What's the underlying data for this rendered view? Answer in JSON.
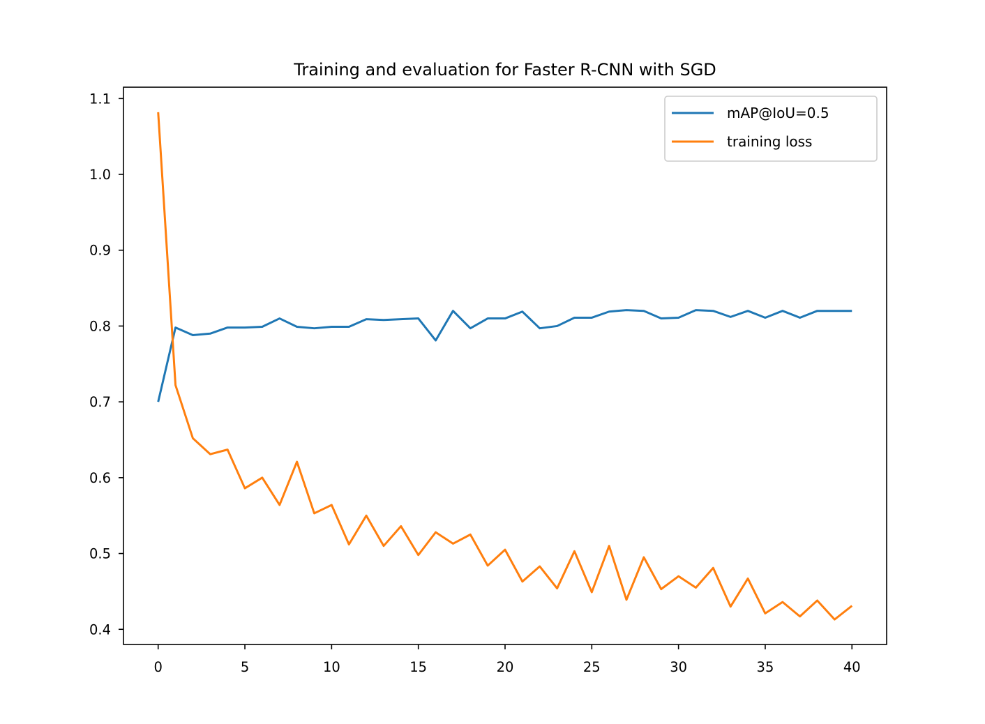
{
  "chart_data": {
    "type": "line",
    "title": "Training and evaluation for Faster R-CNN with SGD",
    "xlabel": "",
    "ylabel": "",
    "xlim": [
      -2,
      42
    ],
    "ylim": [
      0.38,
      1.115
    ],
    "x_ticks": [
      0,
      5,
      10,
      15,
      20,
      25,
      30,
      35,
      40
    ],
    "y_ticks": [
      0.4,
      0.5,
      0.6,
      0.7,
      0.8,
      0.9,
      1.0,
      1.1
    ],
    "x_tick_labels": [
      "0",
      "5",
      "10",
      "15",
      "20",
      "25",
      "30",
      "35",
      "40"
    ],
    "y_tick_labels": [
      "0.4",
      "0.5",
      "0.6",
      "0.7",
      "0.8",
      "0.9",
      "1.0",
      "1.1"
    ],
    "grid": false,
    "legend_position": "upper-right",
    "x": [
      0,
      1,
      2,
      3,
      4,
      5,
      6,
      7,
      8,
      9,
      10,
      11,
      12,
      13,
      14,
      15,
      16,
      17,
      18,
      19,
      20,
      21,
      22,
      23,
      24,
      25,
      26,
      27,
      28,
      29,
      30,
      31,
      32,
      33,
      34,
      35,
      36,
      37,
      38,
      39,
      40
    ],
    "series": [
      {
        "name": "mAP@IoU=0.5",
        "color": "#1f77b4",
        "values": [
          0.7,
          0.798,
          0.788,
          0.79,
          0.798,
          0.798,
          0.799,
          0.81,
          0.799,
          0.797,
          0.799,
          0.799,
          0.809,
          0.808,
          0.809,
          0.81,
          0.781,
          0.82,
          0.797,
          0.81,
          0.81,
          0.819,
          0.797,
          0.8,
          0.811,
          0.811,
          0.819,
          0.821,
          0.82,
          0.81,
          0.811,
          0.821,
          0.82,
          0.812,
          0.82,
          0.811,
          0.82,
          0.811,
          0.82,
          0.82,
          0.82
        ]
      },
      {
        "name": "training loss",
        "color": "#ff7f0e",
        "values": [
          1.082,
          0.722,
          0.652,
          0.631,
          0.637,
          0.586,
          0.6,
          0.564,
          0.621,
          0.553,
          0.564,
          0.512,
          0.55,
          0.51,
          0.536,
          0.498,
          0.528,
          0.513,
          0.525,
          0.484,
          0.505,
          0.463,
          0.483,
          0.454,
          0.503,
          0.449,
          0.51,
          0.439,
          0.495,
          0.453,
          0.47,
          0.455,
          0.481,
          0.43,
          0.467,
          0.421,
          0.436,
          0.417,
          0.438,
          0.413,
          0.431
        ]
      }
    ]
  }
}
